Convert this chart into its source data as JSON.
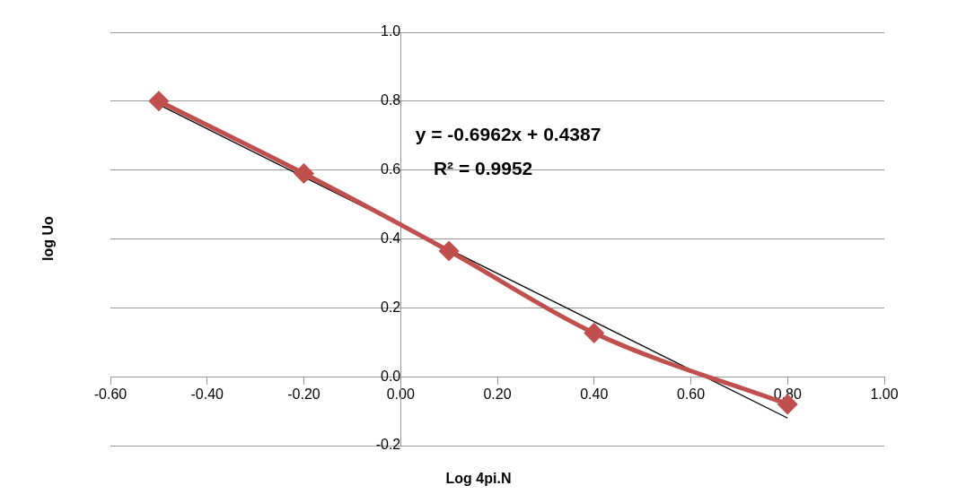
{
  "chart_data": {
    "type": "line",
    "xlabel": "Log 4pi.N",
    "ylabel": "log Uo",
    "series": [
      {
        "color": "#c0504d",
        "x": [
          -0.5,
          -0.2,
          0.1,
          0.4,
          0.8
        ],
        "values": [
          0.8,
          0.59,
          0.365,
          0.127,
          -0.08
        ],
        "marker": "diamond"
      },
      {
        "type": "line",
        "color": "#000000",
        "x": [
          -0.5,
          0.8
        ],
        "values": [
          0.79,
          -0.12
        ],
        "marker": "none"
      }
    ],
    "xlim": [
      -0.6,
      1.0
    ],
    "xticks": [
      {
        "value": -0.6,
        "label": "-0.60"
      },
      {
        "value": -0.4,
        "label": "-0.40"
      },
      {
        "value": -0.2,
        "label": "-0.20"
      },
      {
        "value": 0,
        "label": "0.00"
      },
      {
        "value": 0.2,
        "label": "0.20"
      },
      {
        "value": 0.4,
        "label": "0.40"
      },
      {
        "value": 0.6,
        "label": "0.60"
      },
      {
        "value": 0.8,
        "label": "0.80"
      },
      {
        "value": 1.0,
        "label": "1.00"
      }
    ],
    "ylim": [
      -0.2,
      1.0
    ],
    "yticks": [
      {
        "value": -0.2,
        "label": "-0.2"
      },
      {
        "value": 0,
        "label": "0.0"
      },
      {
        "value": 0.2,
        "label": "0.2"
      },
      {
        "value": 0.4,
        "label": "0.4"
      },
      {
        "value": 0.6,
        "label": "0.6"
      },
      {
        "value": 0.8,
        "label": "0.8"
      },
      {
        "value": 1.0,
        "label": "1.0"
      }
    ],
    "grid": "y",
    "legend": false,
    "annotations": [
      "y = -0.6962x + 0.4387",
      "R² = 0.9952"
    ]
  }
}
